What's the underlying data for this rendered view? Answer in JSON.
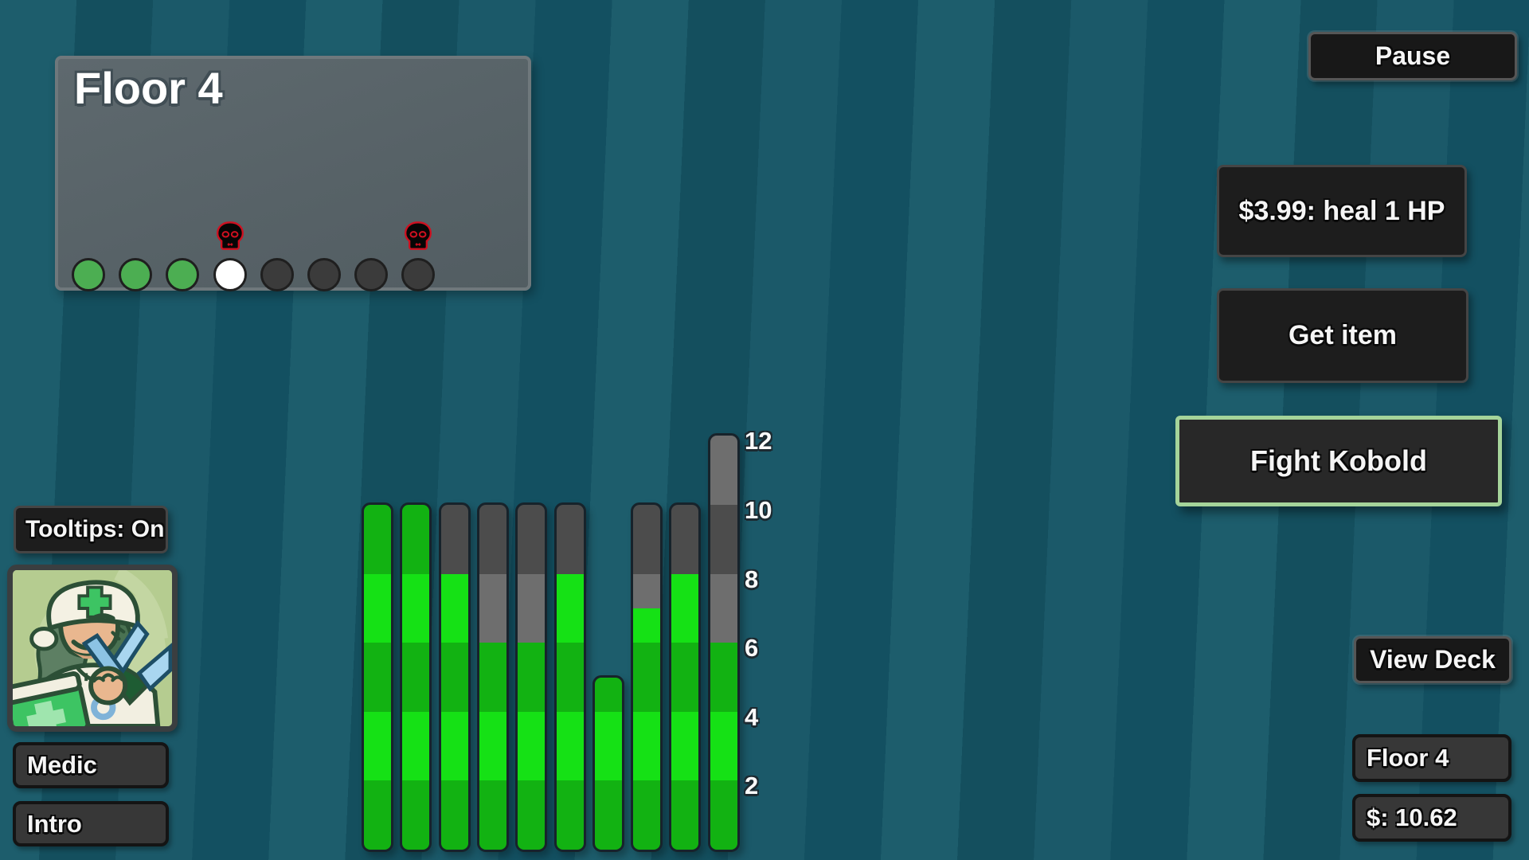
{
  "floor_panel": {
    "title": "Floor 4",
    "node_states": [
      "cleared",
      "cleared",
      "cleared",
      "current",
      "upcoming",
      "upcoming",
      "upcoming",
      "upcoming"
    ],
    "skull_node_indexes": [
      3,
      7
    ],
    "node_colors": {
      "cleared": "#4cae52",
      "current": "#ffffff",
      "upcoming": "#3b3b3b"
    }
  },
  "buttons": {
    "pause": "Pause",
    "heal": "$3.99: heal 1 HP",
    "get_item": "Get item",
    "fight": "Fight Kobold",
    "view_deck": "View Deck",
    "tooltips": "Tooltips: On"
  },
  "status": {
    "character_class": "Medic",
    "character_tag": "Intro",
    "floor": "Floor 4",
    "money": "$: 10.62"
  },
  "icons": {
    "skull": "skull-icon",
    "portrait": "medic-portrait"
  },
  "chart_data": {
    "type": "bar",
    "description": "Hero HP bars: green = current HP, gray = missing HP, shading alternates every 2 HP",
    "bars": [
      {
        "hp": 10,
        "max": 10
      },
      {
        "hp": 10,
        "max": 10
      },
      {
        "hp": 8,
        "max": 10
      },
      {
        "hp": 6,
        "max": 10
      },
      {
        "hp": 6,
        "max": 10
      },
      {
        "hp": 8,
        "max": 10
      },
      {
        "hp": 5,
        "max": 5
      },
      {
        "hp": 7,
        "max": 10
      },
      {
        "hp": 8,
        "max": 10
      },
      {
        "hp": 6,
        "max": 12
      }
    ],
    "yticks": [
      2,
      4,
      6,
      8,
      10,
      12
    ],
    "ylim": [
      0,
      12
    ],
    "colors": {
      "hp_band_dark": "#12b212",
      "hp_band_light": "#15e115",
      "missing_band_dark": "#4c4c4c",
      "missing_band_light": "#6e6e6e"
    }
  }
}
